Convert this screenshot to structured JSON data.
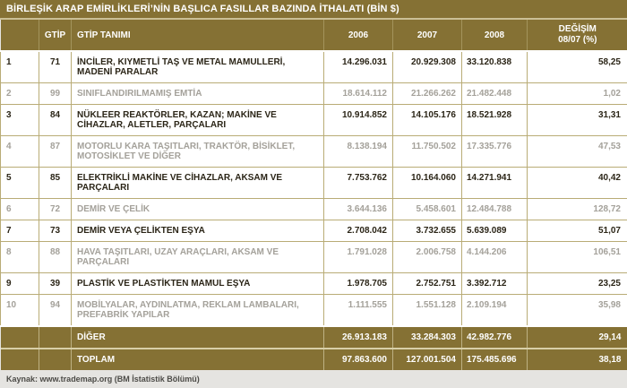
{
  "colors": {
    "gold": "#857134",
    "header_separator": "#a3945c",
    "body_border": "#b9ac76",
    "dark_text": "#2b2517",
    "muted_text": "#a4a19a",
    "title_underline": "#cbbf96",
    "footer_bg": "#e5e4e1",
    "white": "#ffffff"
  },
  "chart_data": {
    "type": "table",
    "title": "BİRLEŞİK ARAP EMİRLİKLERİ’NİN BAŞLICA FASILLAR BAZINDA İTHALATI (BİN $)",
    "columns": [
      "",
      "GTİP",
      "GTİP TANIMI",
      "2006",
      "2007",
      "2008",
      "DEĞİŞİM 08/07 (%)"
    ],
    "header_change_line1": "DEĞİŞİM",
    "header_change_line2": "08/07 (%)",
    "rows": [
      {
        "rank": "1",
        "gtip": "71",
        "description": "İNCİLER, KIYMETLİ TAŞ VE METAL MAMULLERİ, MADENİ PARALAR",
        "y2006": "14.296.031",
        "y2007": "20.929.308",
        "y2008": "33.120.838",
        "change_08_07": "58,25",
        "emphasis": "dark"
      },
      {
        "rank": "2",
        "gtip": "99",
        "description": "SINIFLANDIRILMAMIŞ EMTİA",
        "y2006": "18.614.112",
        "y2007": "21.266.262",
        "y2008": "21.482.448",
        "change_08_07": "1,02",
        "emphasis": "gray"
      },
      {
        "rank": "3",
        "gtip": "84",
        "description": "NÜKLEER REAKTÖRLER, KAZAN; MAKİNE VE CİHAZLAR, ALETLER, PARÇALARI",
        "y2006": "10.914.852",
        "y2007": "14.105.176",
        "y2008": "18.521.928",
        "change_08_07": "31,31",
        "emphasis": "dark"
      },
      {
        "rank": "4",
        "gtip": "87",
        "description": "MOTORLU KARA TAŞITLARI, TRAKTÖR, BİSİKLET, MOTOSİKLET VE DİĞER",
        "y2006": "8.138.194",
        "y2007": "11.750.502",
        "y2008": "17.335.776",
        "change_08_07": "47,53",
        "emphasis": "gray"
      },
      {
        "rank": "5",
        "gtip": "85",
        "description": "ELEKTRİKLİ MAKİNE VE CİHAZLAR, AKSAM VE PARÇALARI",
        "y2006": "7.753.762",
        "y2007": "10.164.060",
        "y2008": "14.271.941",
        "change_08_07": "40,42",
        "emphasis": "dark"
      },
      {
        "rank": "6",
        "gtip": "72",
        "description": "DEMİR VE ÇELİK",
        "y2006": "3.644.136",
        "y2007": "5.458.601",
        "y2008": "12.484.788",
        "change_08_07": "128,72",
        "emphasis": "gray"
      },
      {
        "rank": "7",
        "gtip": "73",
        "description": "DEMİR VEYA ÇELİKTEN EŞYA",
        "y2006": "2.708.042",
        "y2007": "3.732.655",
        "y2008": "5.639.089",
        "change_08_07": "51,07",
        "emphasis": "dark"
      },
      {
        "rank": "8",
        "gtip": "88",
        "description": "HAVA TAŞITLARI, UZAY ARAÇLARI, AKSAM VE PARÇALARI",
        "y2006": "1.791.028",
        "y2007": "2.006.758",
        "y2008": "4.144.206",
        "change_08_07": "106,51",
        "emphasis": "gray"
      },
      {
        "rank": "9",
        "gtip": "39",
        "description": "PLASTİK VE PLASTİKTEN MAMUL EŞYA",
        "y2006": "1.978.705",
        "y2007": "2.752.751",
        "y2008": "3.392.712",
        "change_08_07": "23,25",
        "emphasis": "dark"
      },
      {
        "rank": "10",
        "gtip": "94",
        "description": "MOBİLYALAR, AYDINLATMA, REKLAM LAMBALARI, PREFABRİK YAPILAR",
        "y2006": "1.111.555",
        "y2007": "1.551.128",
        "y2008": "2.109.194",
        "change_08_07": "35,98",
        "emphasis": "gray"
      }
    ],
    "summary_rows": [
      {
        "rank": "",
        "gtip": "",
        "description": "DİĞER",
        "y2006": "26.913.183",
        "y2007": "33.284.303",
        "y2008": "42.982.776",
        "change_08_07": "29,14"
      },
      {
        "rank": "",
        "gtip": "",
        "description": "TOPLAM",
        "y2006": "97.863.600",
        "y2007": "127.001.504",
        "y2008": "175.485.696",
        "change_08_07": "38,18"
      }
    ],
    "source": "Kaynak: www.trademap.org (BM İstatistik Bölümü)"
  }
}
